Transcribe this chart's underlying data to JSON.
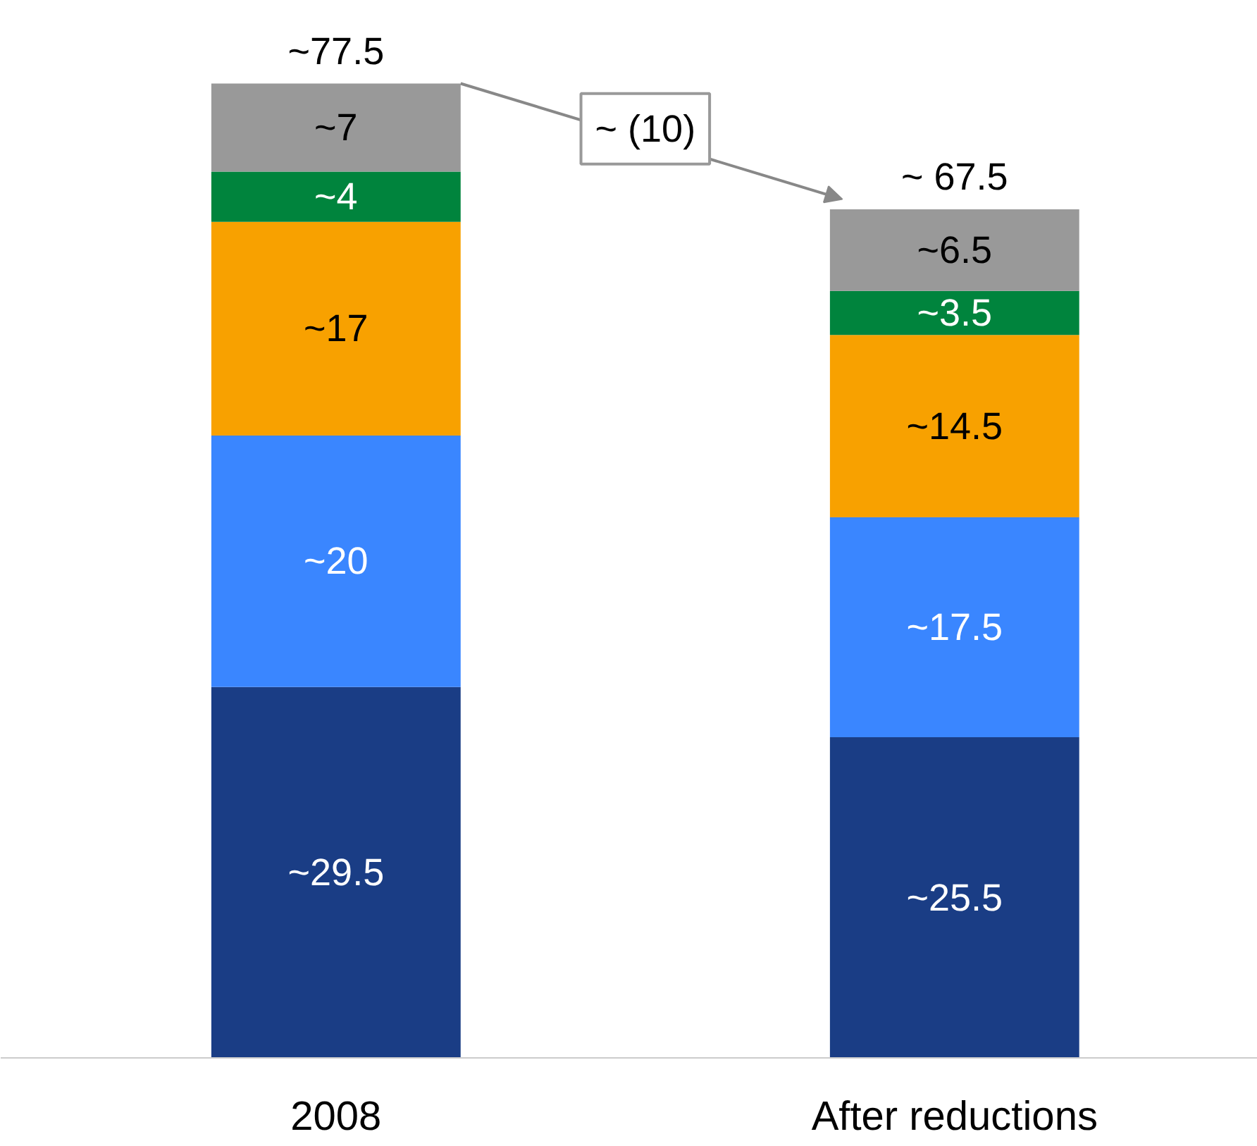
{
  "chart_data": {
    "type": "bar",
    "stacked": true,
    "categories": [
      "2008",
      "After reductions"
    ],
    "grid": false,
    "series": [
      {
        "color": "#1a3d85",
        "values": [
          29.5,
          25.5
        ],
        "value_labels": [
          "~29.5",
          "~25.5"
        ]
      },
      {
        "color": "#3a86ff",
        "values": [
          20,
          17.5
        ],
        "value_labels": [
          "~20",
          "~17.5"
        ]
      },
      {
        "color": "#f8a100",
        "values": [
          17,
          14.5
        ],
        "value_labels": [
          "~17",
          "~14.5"
        ]
      },
      {
        "color": "#00843d",
        "values": [
          4,
          3.5
        ],
        "value_labels": [
          "~4",
          "~3.5"
        ]
      },
      {
        "color": "#999999",
        "values": [
          7,
          6.5
        ],
        "value_labels": [
          "~7",
          "~6.5"
        ]
      }
    ],
    "totals": [
      "~77.5",
      "~ 67.5"
    ],
    "annotations": [
      "~ (10)"
    ]
  }
}
